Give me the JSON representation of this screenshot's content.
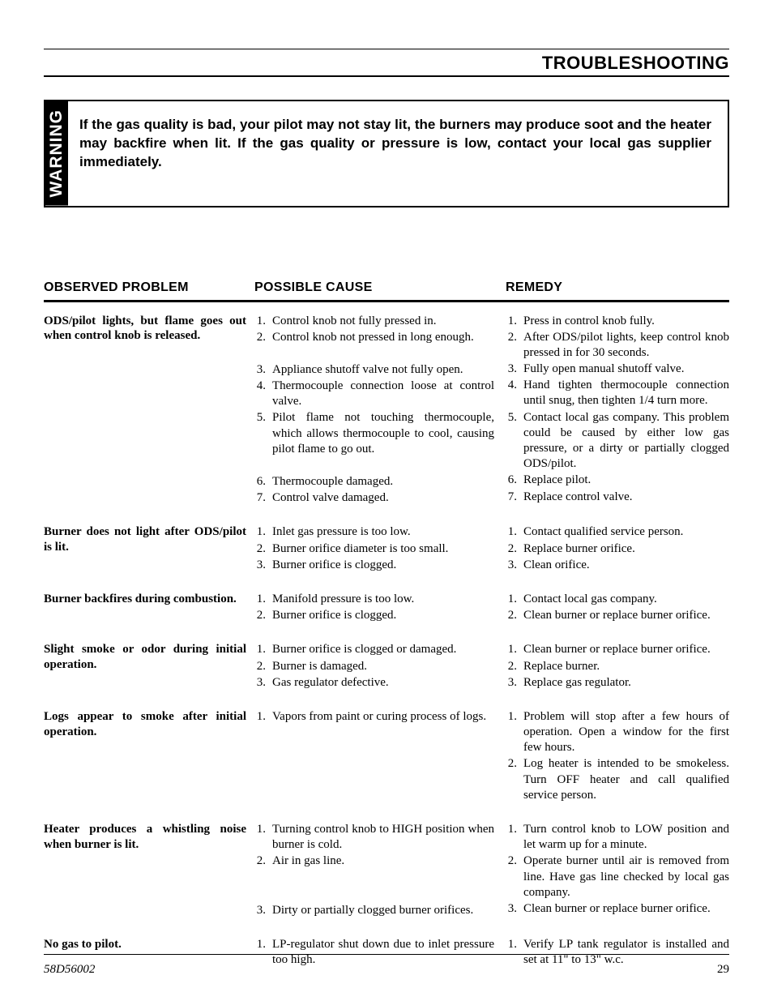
{
  "section_title": "TROUBLESHOOTING",
  "warning": {
    "label": "WARNING",
    "text": "If the gas quality is bad, your pilot may not stay lit, the burners may produce soot and the heater may backfire when lit. If the gas quality or pressure is low, contact your local gas supplier immediately."
  },
  "columns": {
    "observed": "OBSERVED PROBLEM",
    "cause": "POSSIBLE CAUSE",
    "remedy": "REMEDY"
  },
  "rows": [
    {
      "problem": "ODS/pilot lights, but flame goes out when control knob is released.",
      "causes": [
        "Control knob not fully pressed in.",
        "Control knob not pressed in long enough.",
        "Appliance shutoff valve not fully open.",
        "Thermocouple connection loose at control valve.",
        "Pilot flame not touching thermocouple, which allows thermocouple to cool, causing pilot flame to go out.",
        "Thermocouple damaged.",
        "Control valve damaged."
      ],
      "cause_gaps_after": {
        "1": 1,
        "4": 1
      },
      "remedies": [
        "Press in control knob fully.",
        "After ODS/pilot lights, keep control knob pressed in for 30 seconds.",
        "Fully open manual shutoff valve.",
        "Hand tighten thermocouple connection until snug, then tighten 1/4 turn more.",
        "Contact local gas company. This problem could be caused by either low gas pressure, or a dirty or partially clogged ODS/pilot.",
        "Replace pilot.",
        "Replace control valve."
      ]
    },
    {
      "problem": "Burner does not light after ODS/pilot is lit.",
      "causes": [
        "Inlet gas pressure is too low.",
        "Burner orifice diameter is too small.",
        "Burner orifice is clogged."
      ],
      "remedies": [
        "Contact qualified service person.",
        "Replace burner orifice.",
        "Clean orifice."
      ]
    },
    {
      "problem": "Burner backfires during combustion.",
      "causes": [
        "Manifold pressure is too low.",
        "Burner orifice is clogged."
      ],
      "remedies": [
        "Contact local gas company.",
        "Clean burner or replace burner orifice."
      ]
    },
    {
      "problem": "Slight smoke or odor during initial operation.",
      "causes": [
        "Burner orifice is clogged or damaged.",
        "Burner is damaged.",
        "Gas regulator defective."
      ],
      "remedies": [
        "Clean burner or replace burner orifice.",
        "Replace burner.",
        "Replace gas regulator."
      ]
    },
    {
      "problem": "Logs appear to smoke after initial operation.",
      "causes": [
        "Vapors from paint or curing process of logs."
      ],
      "remedies": [
        "Problem will stop after a few hours of operation. Open a window for the first few hours.",
        "Log heater is intended to be smokeless. Turn OFF heater and call qualified service person."
      ]
    },
    {
      "problem": "Heater produces a whistling noise when burner is lit.",
      "causes": [
        "Turning control knob to HIGH position when burner is cold.",
        "Air in gas line.",
        "Dirty or partially clogged burner orifices."
      ],
      "cause_gaps_after": {
        "1": 2
      },
      "remedies": [
        "Turn control knob to LOW position and let warm up for a minute.",
        "Operate burner until air is removed from line. Have gas line checked by local gas company.",
        "Clean burner or replace burner orifice."
      ]
    },
    {
      "problem": "No gas to pilot.",
      "causes": [
        "LP-regulator shut down due to inlet pressure too high."
      ],
      "remedies": [
        "Verify LP tank regulator is installed and set at 11\" to 13\" w.c."
      ]
    }
  ],
  "footer": {
    "doc_id": "58D56002",
    "page_num": "29"
  }
}
